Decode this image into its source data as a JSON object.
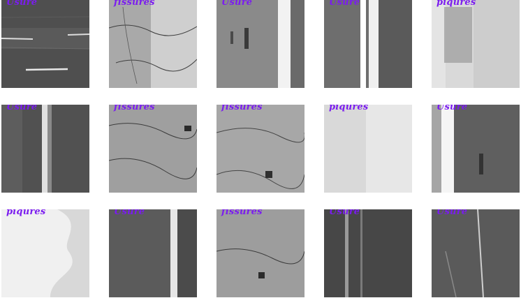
{
  "accent_color": "#7b1cf0",
  "tiles": [
    {
      "label": "Usure",
      "texture": "usure-streaks"
    },
    {
      "label": "fissures",
      "texture": "fissures"
    },
    {
      "label": "Usure",
      "texture": "usure-stripe"
    },
    {
      "label": "Usure",
      "texture": "usure-stripe"
    },
    {
      "label": "piqures",
      "texture": "piqures"
    },
    {
      "label": "Usure",
      "texture": "usure-dark"
    },
    {
      "label": "fissures",
      "texture": "fissures"
    },
    {
      "label": "fissures",
      "texture": "fissures"
    },
    {
      "label": "piqures",
      "texture": "piqures"
    },
    {
      "label": "Usure",
      "texture": "usure-stripe"
    },
    {
      "label": "piqures",
      "texture": "piqures-light"
    },
    {
      "label": "Usure",
      "texture": "usure-stripe"
    },
    {
      "label": "fissures",
      "texture": "fissures"
    },
    {
      "label": "Usure",
      "texture": "usure-dark"
    },
    {
      "label": "Usure",
      "texture": "usure-scratches"
    }
  ]
}
